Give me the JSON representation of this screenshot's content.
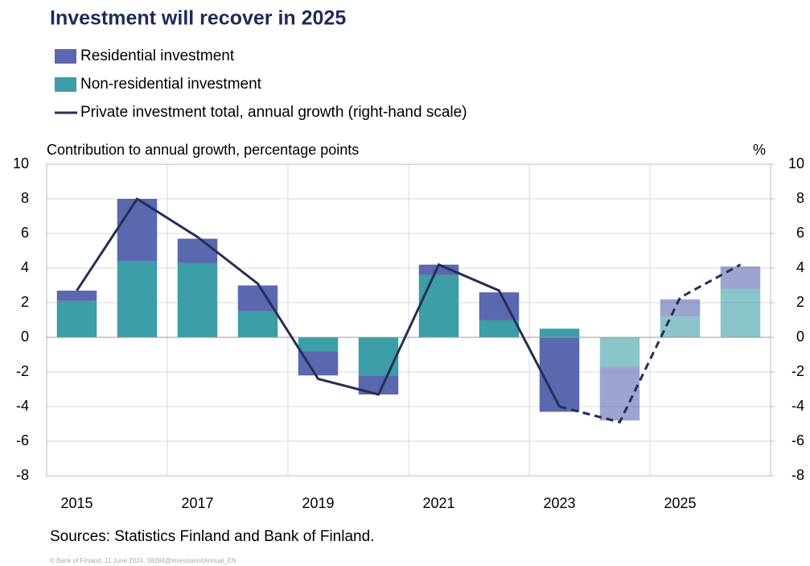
{
  "chart_data": {
    "type": "stacked_bar_line",
    "title": "Investment will recover in 2025",
    "y_axis_label": "Contribution to annual growth, percentage points",
    "y2_axis_label": "%",
    "source": "Sources: Statistics Finland and Bank of Finland.",
    "footnote": "© Bank of Finland, 11 June 2024, 38284@InvestoinnitAnnual_EN",
    "categories": [
      "2015",
      null,
      "2017",
      null,
      "2019",
      null,
      "2021",
      null,
      "2023",
      null,
      "2025",
      null
    ],
    "series": [
      {
        "name": "Non-residential investment",
        "color": "#3c9ea6",
        "values": [
          2.1,
          4.4,
          4.3,
          1.5,
          -0.8,
          -2.2,
          3.6,
          1.0,
          0.5,
          -1.7,
          1.2,
          2.8
        ]
      },
      {
        "name": "Residential investment",
        "color": "#5a68b0",
        "values": [
          0.6,
          3.6,
          1.4,
          1.5,
          -1.4,
          -1.1,
          0.6,
          1.6,
          -4.3,
          -3.1,
          1.0,
          1.3
        ]
      },
      {
        "name": "Private investment total, annual growth (right-hand scale)",
        "color": "#262f55",
        "axis": "y2",
        "values": [
          2.7,
          8.0,
          5.8,
          3.1,
          -2.4,
          -3.3,
          4.2,
          2.7,
          -4.0,
          -4.9,
          2.3,
          4.2
        ]
      }
    ],
    "legend_order": [
      1,
      0,
      2
    ],
    "forecast_from_index": 9,
    "ylim": [
      -8,
      10
    ],
    "yticks": [
      -8,
      -6,
      -4,
      -2,
      0,
      2,
      4,
      6,
      8,
      10
    ],
    "y2lim": [
      -8,
      10
    ],
    "y2ticks": [
      -8,
      -6,
      -4,
      -2,
      0,
      2,
      4,
      6,
      8,
      10
    ],
    "grid": true
  }
}
